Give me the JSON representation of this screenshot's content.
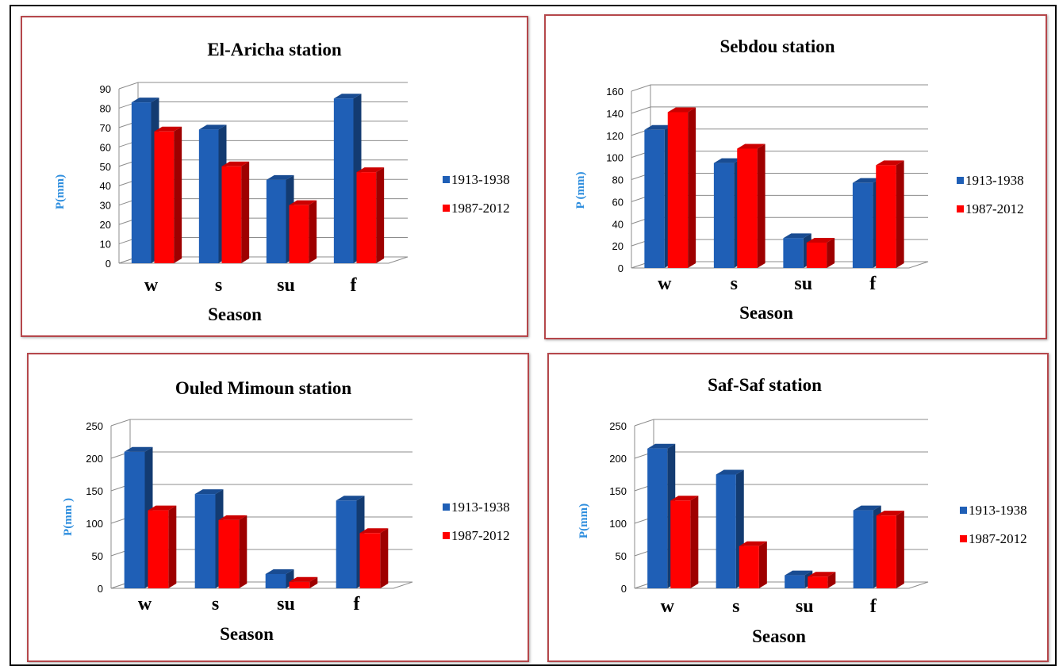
{
  "colors": {
    "series_1": "#1f5fb6",
    "series_2": "#ff0000",
    "ylabel": "#2e8ede",
    "border": "#b5474b"
  },
  "chart_data": [
    {
      "type": "bar",
      "title": "El-Aricha station",
      "xlabel": "Season",
      "ylabel": "P(mm)",
      "categories": [
        "w",
        "s",
        "su",
        "f"
      ],
      "series": [
        {
          "name": "1913-1938",
          "values": [
            83,
            69,
            43,
            85
          ]
        },
        {
          "name": "1987-2012",
          "values": [
            68,
            50,
            30,
            47
          ]
        }
      ],
      "ylim": [
        0,
        90
      ],
      "yticks": [
        0,
        10,
        20,
        30,
        40,
        50,
        60,
        70,
        80,
        90
      ],
      "grid": true,
      "legend": "right"
    },
    {
      "type": "bar",
      "title": "Sebdou station",
      "xlabel": "Season",
      "ylabel": "P (mm)",
      "categories": [
        "w",
        "s",
        "su",
        "f"
      ],
      "series": [
        {
          "name": "1913-1938",
          "values": [
            125,
            95,
            27,
            77
          ]
        },
        {
          "name": "1987-2012",
          "values": [
            141,
            108,
            23,
            93
          ]
        }
      ],
      "ylim": [
        0,
        160
      ],
      "yticks": [
        0,
        20,
        40,
        60,
        80,
        100,
        120,
        140,
        160
      ],
      "grid": true,
      "legend": "right"
    },
    {
      "type": "bar",
      "title": "Ouled Mimoun station",
      "xlabel": "Season",
      "ylabel": "P(mm )",
      "categories": [
        "w",
        "s",
        "su",
        "f"
      ],
      "series": [
        {
          "name": "1913-1938",
          "values": [
            210,
            145,
            22,
            135
          ]
        },
        {
          "name": "1987-2012",
          "values": [
            120,
            105,
            10,
            85
          ]
        }
      ],
      "ylim": [
        0,
        250
      ],
      "yticks": [
        0,
        50,
        100,
        150,
        200,
        250
      ],
      "grid": true,
      "legend": "right"
    },
    {
      "type": "bar",
      "title": "Saf-Saf station",
      "xlabel": "Season",
      "ylabel": "P(mm)",
      "categories": [
        "w",
        "s",
        "su",
        "f"
      ],
      "series": [
        {
          "name": "1913-1938",
          "values": [
            215,
            175,
            20,
            120
          ]
        },
        {
          "name": "1987-2012",
          "values": [
            135,
            65,
            18,
            112
          ]
        }
      ],
      "ylim": [
        0,
        250
      ],
      "yticks": [
        0,
        50,
        100,
        150,
        200,
        250
      ],
      "grid": true,
      "legend": "right"
    }
  ]
}
